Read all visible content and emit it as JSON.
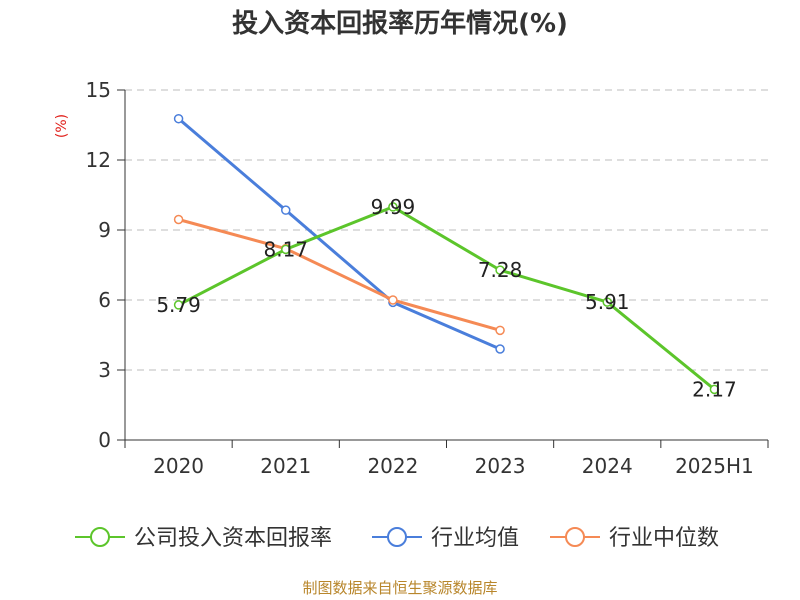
{
  "chart_data": {
    "type": "line",
    "title": "投入资本回报率历年情况(%)",
    "ylabel": "(%)",
    "xlabel": "",
    "categories": [
      "2020",
      "2021",
      "2022",
      "2023",
      "2024",
      "2025H1"
    ],
    "ylim": [
      0,
      15
    ],
    "yticks": [
      0,
      3,
      6,
      9,
      12,
      15
    ],
    "grid": "horizontal dashed",
    "legend_position": "bottom",
    "series": [
      {
        "name": "公司投入资本回报率",
        "color": "#5cc52b",
        "values": [
          5.79,
          8.17,
          9.99,
          7.28,
          5.91,
          2.17
        ],
        "labels": [
          "5.79",
          "8.17",
          "9.99",
          "7.28",
          "5.91",
          "2.17"
        ]
      },
      {
        "name": "行业均值",
        "color": "#4a7edb",
        "values": [
          13.77,
          9.85,
          5.9,
          3.9,
          null,
          null
        ]
      },
      {
        "name": "行业中位数",
        "color": "#f58a55",
        "values": [
          9.45,
          8.2,
          6.0,
          4.7,
          null,
          null
        ]
      }
    ]
  },
  "source": "制图数据来自恒生聚源数据库"
}
